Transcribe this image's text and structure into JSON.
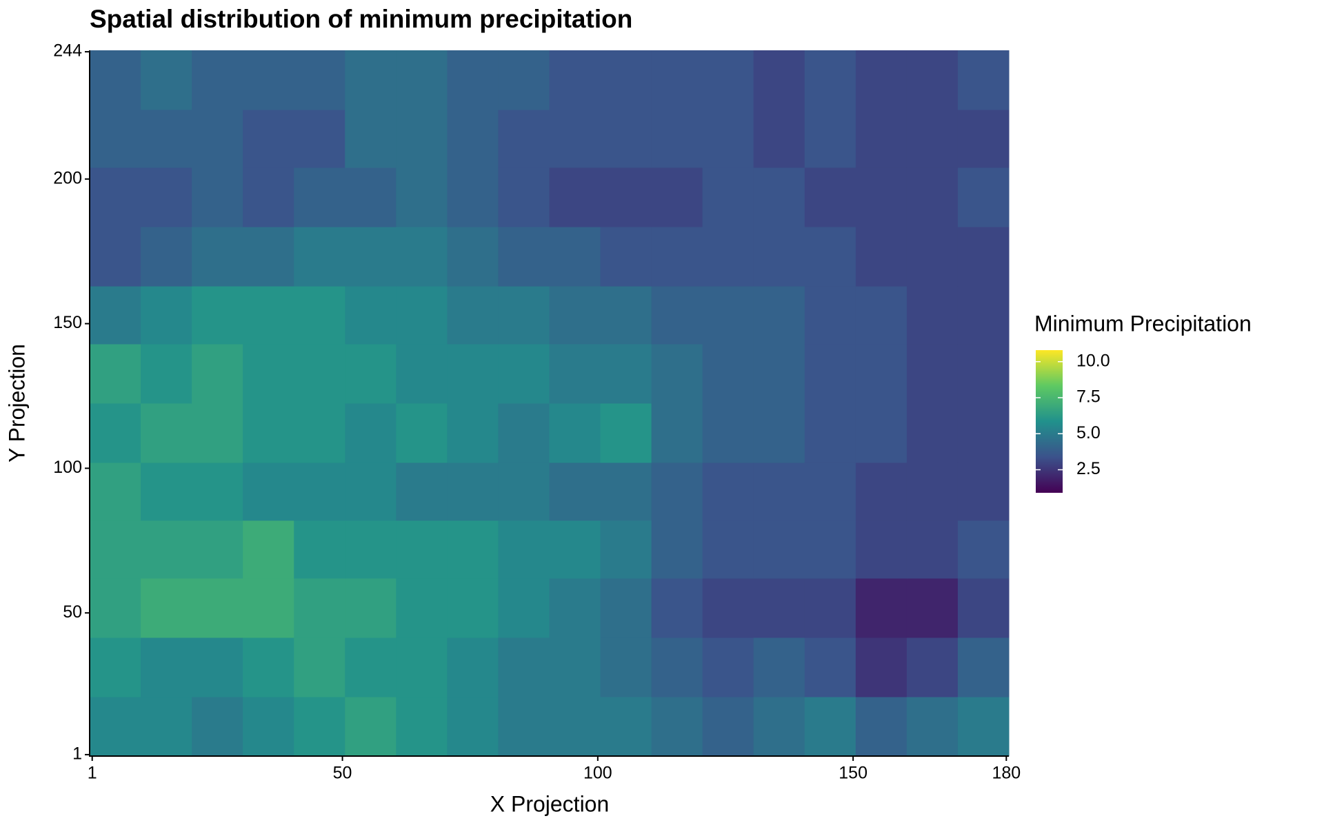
{
  "chart_data": {
    "type": "heatmap",
    "title": "Spatial distribution of minimum precipitation",
    "x_label": "X Projection",
    "y_label": "Y Projection",
    "legend_title": "Minimum Precipitation",
    "x": [
      5.5,
      15.5,
      25.5,
      35.5,
      45.5,
      55.5,
      65.5,
      75.5,
      85.5,
      95.5,
      105.5,
      115.5,
      125.5,
      135.5,
      145.5,
      155.5,
      165.5,
      175.5
    ],
    "y": [
      11,
      31,
      52,
      72,
      92,
      112,
      133,
      153,
      173,
      194,
      214,
      234
    ],
    "z": [
      [
        5.5,
        5.5,
        5,
        5.5,
        6,
        6.5,
        6,
        5.5,
        5,
        5,
        5,
        4.5,
        4,
        4.5,
        5,
        4,
        4.5,
        5
      ],
      [
        6,
        5.5,
        5.5,
        6,
        6.5,
        6,
        6,
        5.5,
        5,
        5,
        4.5,
        4,
        3.5,
        4,
        3.5,
        2.5,
        3,
        4
      ],
      [
        6.5,
        7,
        7,
        7,
        6.5,
        6.5,
        6,
        6,
        5.5,
        5,
        4.5,
        3.5,
        3,
        3,
        3,
        2,
        2,
        3
      ],
      [
        6.5,
        6.5,
        6.5,
        7,
        6,
        6,
        6,
        6,
        5.5,
        5.5,
        5,
        4,
        3.5,
        3.5,
        3.5,
        3,
        3,
        3.5
      ],
      [
        6.5,
        6,
        6,
        5.5,
        5.5,
        5.5,
        5,
        5,
        5,
        4.5,
        4.5,
        4,
        3.5,
        3.5,
        3.5,
        3,
        3,
        3
      ],
      [
        6,
        6.5,
        6.5,
        6,
        6,
        5.5,
        6,
        5.5,
        5,
        5.5,
        6,
        4.5,
        4,
        4,
        3.5,
        3.5,
        3,
        3
      ],
      [
        6.5,
        6,
        6.5,
        6,
        6,
        6,
        5.5,
        5.5,
        5.5,
        5,
        5,
        4.5,
        4,
        4,
        3.5,
        3.5,
        3,
        3
      ],
      [
        5,
        5.5,
        6,
        6,
        6,
        5.5,
        5.5,
        5,
        5,
        4.5,
        4.5,
        4,
        4,
        4,
        3.5,
        3.5,
        3,
        3
      ],
      [
        3.5,
        4,
        4.5,
        4.5,
        5,
        5,
        5,
        4.5,
        4,
        4,
        3.5,
        3.5,
        3.5,
        3.5,
        3.5,
        3,
        3,
        3
      ],
      [
        3.5,
        3.5,
        4,
        3.5,
        4,
        4,
        4.5,
        4,
        3.5,
        3,
        3,
        3,
        3.5,
        3.5,
        3,
        3,
        3,
        3.5
      ],
      [
        4,
        4,
        4,
        3.5,
        3.5,
        4.5,
        4.5,
        4,
        3.5,
        3.5,
        3.5,
        3.5,
        3.5,
        3,
        3.5,
        3,
        3,
        3
      ],
      [
        4,
        4.5,
        4,
        4,
        4,
        4.5,
        4.5,
        4,
        4,
        3.5,
        3.5,
        3.5,
        3.5,
        3,
        3.5,
        3,
        3,
        3.5
      ]
    ],
    "xlim": [
      0.5,
      180.5
    ],
    "ylim": [
      0.5,
      244.5
    ],
    "xticks": [
      1,
      50,
      100,
      150,
      180
    ],
    "yticks": [
      1,
      50,
      100,
      150,
      200,
      244
    ],
    "zlim": [
      0.9,
      10.8
    ],
    "zticks": [
      {
        "value": 10,
        "label": "10.0"
      },
      7.5,
      {
        "value": 5,
        "label": "5.0"
      },
      2.5
    ],
    "colors": [
      "#440154",
      "#3b528b",
      "#21918c",
      "#5ec962",
      "#fde725"
    ]
  }
}
